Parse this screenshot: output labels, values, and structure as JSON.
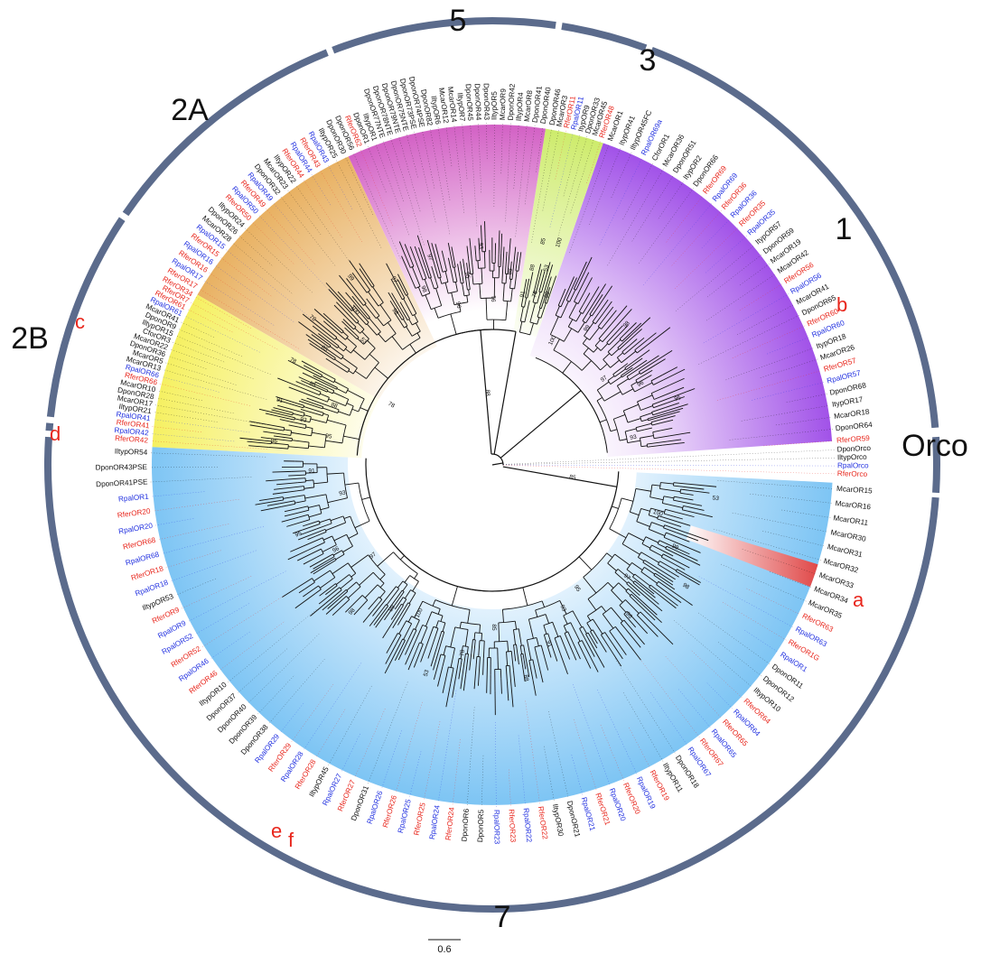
{
  "colors": {
    "ring": "#5b6b8c",
    "clade_1": "#a050e8",
    "clade_3": "#cdeb6a",
    "clade_5": "#d25fc4",
    "clade_2A": "#e8b060",
    "clade_2B": "#f5f060",
    "clade_7": "#7cc4f4",
    "highlight_a": "#e04848",
    "tip_black": "#111111",
    "tip_red": "#e8261c",
    "tip_blue": "#2231e0"
  },
  "clade_labels": {
    "c5": "5",
    "c3": "3",
    "c1": "1",
    "c2A": "2A",
    "c2B": "2B",
    "corco": "Orco",
    "c7": "7"
  },
  "marks": {
    "a": "a",
    "b": "b",
    "c": "c",
    "d": "d",
    "e": "e",
    "f": "f"
  },
  "scale_bar": {
    "label": "0.6"
  },
  "tip_labels": {
    "orco": [
      "DponOrco",
      "IltypOrco",
      "RpalOrco",
      "RferOrco"
    ],
    "clade_1": [
      "McarOR1",
      "ItypOR41",
      "IltypOR45FC",
      "RpalOR69a",
      "CforOR1",
      "McarOR36",
      "DponOR51",
      "ItypOR2",
      "DponOR66",
      "RferOR69",
      "RpalOR69",
      "RferOR36",
      "RpalOR36",
      "RferOR35",
      "RpalOR35",
      "ItypOR57",
      "DponOR59",
      "McarOR19",
      "McarOR42",
      "RferOR56",
      "RpalOR56",
      "McarOR41",
      "DponOR65",
      "RferOR60",
      "RpalOR60",
      "ItypOR18",
      "McarOR26",
      "RferOR57",
      "RpalOR57",
      "DponOR68",
      "ItypOR17",
      "McarOR18",
      "DponOR64",
      "RferOR59"
    ],
    "clade_3": [
      "DponOR46",
      "McarOR3",
      "RferOR11",
      "RpalOR11",
      "ItypOR9",
      "DponOR33",
      "McarOR45",
      "RferOR48"
    ],
    "clade_5": [
      "DponOR56",
      "RferOR62",
      "DponOR1",
      "IltypOR1",
      "DponOR77NTE",
      "DponOR78NTE",
      "DponOR79NTE",
      "DponOR75NTE",
      "DponOR73PSE",
      "DponOR74PSE",
      "DponOR82",
      "IltypOR6",
      "McarOR12",
      "McarOR14",
      "IltypOR7",
      "DponOR45",
      "DponOR44",
      "DponOR43",
      "IltypOR5",
      "McarOR9",
      "DponOR42",
      "IltypOR4",
      "McarOR8",
      "DponOR41",
      "DponOR40"
    ],
    "clade_2A": [
      "RferOR17",
      "RpalOR17",
      "RferOR16",
      "RpalOR16",
      "RferOR15",
      "RpalOR15",
      "McarOR28",
      "DponOR26",
      "IltypOR24",
      "RferOR50",
      "RpalOR50",
      "RferOR49",
      "RpalOR49",
      "DponOR32",
      "McarOR23",
      "IltypOR22",
      "RferOR44",
      "RpalOR44",
      "RferOR43",
      "RpalOR43",
      "IltypOR25",
      "DponOR30"
    ],
    "clade_2B": [
      "RferOR42",
      "RpalOR42",
      "RferOR41",
      "RpalOR41",
      "IltypOR21",
      "McarOR17",
      "DponOR28",
      "McarOR10",
      "RferOR66",
      "RpalOR66",
      "McarOR13",
      "McarOR5",
      "DponOR36",
      "McarOR22",
      "CforOR3",
      "IltypOR15",
      "DponOR9",
      "McarOR41",
      "RpalOR61",
      "RferOR61",
      "RferOR7",
      "RferOR34"
    ],
    "clade_7": [
      "McarOR15",
      "McarOR16",
      "McarOR11",
      "McarOR30",
      "McarOR31",
      "McarOR32",
      "McarOR33",
      "McarOR34",
      "McarOR35",
      "RferOR63",
      "RpalOR63",
      "RferOR1G",
      "RpalOR1",
      "DponOR11",
      "DponOR12",
      "IltypOR10",
      "RferOR64",
      "RpalOR64",
      "RferOR65",
      "RpalOR65",
      "RferOR67",
      "RpalOR67",
      "DponOR18",
      "IltypOR11",
      "RferOR19",
      "RpalOR19",
      "RferOR20",
      "RpalOR20",
      "RferOR21",
      "RpalOR21",
      "DponOR21",
      "IltypOR30",
      "RferOR22",
      "RpalOR22",
      "RferOR23",
      "RpalOR23",
      "DponOR5",
      "DponOR6",
      "RferOR24",
      "RpalOR24",
      "RferOR25",
      "RpalOR25",
      "RferOR26",
      "RpalOR26",
      "DponOR31",
      "RferOR27",
      "RpalOR27",
      "IltypOR45",
      "RferOR28",
      "RpalOR28",
      "RferOR29",
      "RpalOR29",
      "DponOR38",
      "DponOR39",
      "DponOR40",
      "DponOR37",
      "IltypOR10",
      "RferOR46",
      "RpalOR46",
      "RferOR52",
      "RpalOR52",
      "RpalOR9",
      "RferOR9",
      "IltypOR53",
      "RpalOR18",
      "RferOR18",
      "RpalOR68",
      "RferOR68",
      "RpalOR20",
      "RferOR20",
      "RpalOR1",
      "DponOR41PSE",
      "DponOR43PSE",
      "IltypOR54"
    ]
  },
  "bootstrap_values": [
    "100",
    "99",
    "98",
    "97",
    "96",
    "95",
    "93",
    "91",
    "88",
    "85",
    "78",
    "53"
  ]
}
